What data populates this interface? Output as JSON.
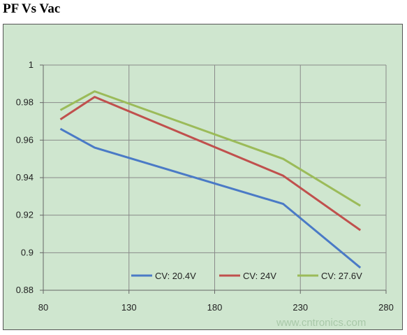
{
  "title": "PF Vs Vac",
  "watermark": "www.cntronics.com",
  "chart_data": {
    "type": "line",
    "title": "",
    "xlabel": "",
    "ylabel": "",
    "xlim": [
      80,
      280
    ],
    "ylim": [
      0.88,
      1
    ],
    "x_ticks": [
      "80",
      "130",
      "180",
      "230",
      "280"
    ],
    "y_ticks": [
      "0.88",
      "0.9",
      "0.92",
      "0.94",
      "0.96",
      "0.98",
      "1"
    ],
    "grid": true,
    "legend_position": "bottom-right",
    "series": [
      {
        "name": "CV: 20.4V",
        "color": "#4a7ac6",
        "x": [
          90,
          110,
          220,
          265
        ],
        "y": [
          0.966,
          0.956,
          0.926,
          0.892
        ]
      },
      {
        "name": "CV: 24V",
        "color": "#c0504d",
        "x": [
          90,
          110,
          220,
          265
        ],
        "y": [
          0.971,
          0.983,
          0.941,
          0.912
        ]
      },
      {
        "name": "CV: 27.6V",
        "color": "#9bbb59",
        "x": [
          90,
          110,
          220,
          265
        ],
        "y": [
          0.976,
          0.986,
          0.95,
          0.925
        ]
      }
    ]
  }
}
